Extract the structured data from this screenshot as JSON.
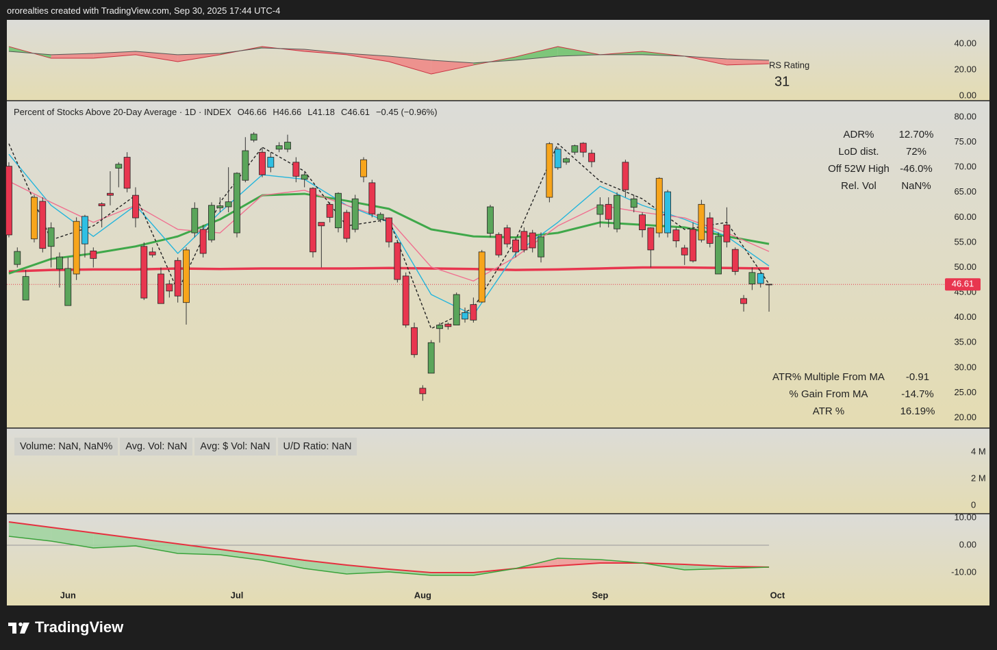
{
  "header": {
    "attribution": "ororealties created with TradingView.com, Sep 30, 2025 17:44 UTC-4"
  },
  "footer": {
    "brand": "TradingView"
  },
  "chart_data": [
    {
      "type": "area",
      "label": "RS Rating",
      "rating": "31",
      "x": [
        0,
        5,
        10,
        15,
        20,
        25,
        30,
        35,
        40,
        45,
        50,
        55,
        60,
        65,
        70,
        75,
        80,
        85,
        90
      ],
      "series": [
        {
          "color": "#c9303f",
          "values": [
            37.9,
            28.9,
            28.9,
            31.6,
            26.3,
            31.6,
            37.9,
            34.2,
            31.6,
            26.3,
            16.8,
            23.7,
            30,
            37.9,
            31.6,
            34.2,
            30.5,
            23.7,
            24.7
          ]
        },
        {
          "color": "#555555",
          "values": [
            34.2,
            31.6,
            32.6,
            34.2,
            31.6,
            32.6,
            36.8,
            35.8,
            32.6,
            30.5,
            27.4,
            25.3,
            27.4,
            30.5,
            31.6,
            31.6,
            30.5,
            28.4,
            27.4
          ]
        }
      ],
      "fill_above": "#6cc26c",
      "fill_below": "#ef8585",
      "ylim": [
        -3.7,
        58.4
      ],
      "yticks": [
        {
          "value": 40,
          "label": "40.00"
        },
        {
          "value": 20,
          "label": "20.00"
        },
        {
          "value": 0,
          "label": "0.00"
        }
      ]
    },
    {
      "type": "candlestick",
      "title": "Percent of Stocks Above 20-Day Average · 1D · INDEX",
      "legend_values": [
        "O46.66",
        "H46.66",
        "L41.18",
        "C46.61",
        "−0.45 (−0.96%)"
      ],
      "open": [
        70.2,
        50.6,
        43.5,
        55.7,
        63.2,
        54.2,
        49.7,
        42.4,
        48.7,
        54.7,
        53.3,
        62.7,
        64.8,
        69.8,
        72,
        64.4,
        54.2,
        53.1,
        48.7,
        46.7,
        51.4,
        43,
        56.9,
        57.6,
        55.5,
        61.9,
        62.1,
        56.9,
        67.4,
        75.4,
        73,
        70,
        73.6,
        73.6,
        71,
        67.6,
        65.8,
        59,
        62.6,
        57.9,
        61,
        57.6,
        68.1,
        66.9,
        59.6,
        59.9,
        54.9,
        48.3,
        38,
        25.9,
        28.9,
        37.8,
        38.7,
        38.5,
        39.7,
        42.6,
        43.1,
        56.8,
        56.6,
        57.9,
        55.5,
        57.2,
        56.9,
        52.1,
        64,
        69.9,
        71,
        73,
        74.8,
        72.8,
        60.6,
        62.6,
        57.7,
        71,
        62,
        60.5,
        57.9,
        56.9,
        56.9,
        57.5,
        53.9,
        57.6,
        55.5,
        59.9,
        48.7,
        58.5,
        53.6,
        43.8,
        46.7,
        46.8,
        46.66
      ],
      "high": [
        71,
        54,
        49.5,
        64.5,
        64,
        59,
        53,
        52,
        60,
        60.5,
        54,
        63,
        69.2,
        71,
        73,
        66,
        55,
        54,
        50,
        47.5,
        52,
        54,
        63,
        58.5,
        63,
        64,
        70,
        69,
        76,
        77,
        74,
        73,
        75,
        76.5,
        72,
        69,
        66,
        59,
        63,
        65,
        61.5,
        64.5,
        72,
        67.5,
        61,
        60,
        55.5,
        49,
        39,
        26.5,
        35.5,
        39,
        39,
        45,
        42,
        44,
        53.5,
        62.5,
        57,
        58.5,
        56,
        58,
        57.5,
        57,
        75,
        74,
        72,
        74.5,
        75,
        73.5,
        64,
        64,
        65,
        71.5,
        64.5,
        61,
        58,
        68,
        65.5,
        58,
        54.5,
        59,
        63.5,
        61,
        57,
        62,
        54,
        44.5,
        50,
        49.5,
        46.66
      ],
      "low": [
        56,
        50,
        43.5,
        55,
        53,
        50,
        46,
        42.4,
        47.5,
        52,
        50,
        58,
        62.4,
        66,
        65,
        58,
        43.5,
        52,
        42.8,
        44,
        43,
        38.6,
        56,
        52,
        55,
        61,
        61,
        56,
        67,
        75,
        68,
        69,
        73,
        73,
        67,
        66,
        52,
        50,
        59,
        57,
        55,
        57,
        67,
        60,
        59,
        54,
        47,
        38,
        32,
        23.4,
        28.9,
        35,
        37.6,
        38.5,
        39,
        39,
        43,
        56,
        52,
        54,
        52,
        53,
        53,
        51,
        63,
        69.5,
        70.5,
        72.5,
        72,
        70,
        58,
        58,
        57,
        64,
        61,
        56,
        50,
        56,
        56,
        54,
        50.5,
        51,
        55,
        54,
        48.7,
        54,
        48.5,
        41.2,
        45.5,
        46,
        41.18
      ],
      "close": [
        56.5,
        53.2,
        48.2,
        64,
        53.8,
        57.9,
        52.1,
        49.8,
        59.2,
        60.2,
        51.8,
        62.3,
        64.4,
        70.6,
        65.8,
        59.9,
        43.9,
        52.5,
        42.8,
        45.3,
        44.3,
        53.5,
        61.8,
        52.8,
        62.4,
        62.3,
        63.1,
        68.8,
        73.3,
        76.6,
        68.5,
        72,
        74.3,
        75,
        68.2,
        68.5,
        53.1,
        58.3,
        60,
        64.8,
        55.8,
        63.7,
        71.5,
        60.7,
        60.6,
        55.1,
        47.6,
        38.5,
        32.6,
        24.8,
        35,
        38.5,
        38.2,
        44.6,
        41,
        39.5,
        53.1,
        62.1,
        52.5,
        54.7,
        53.1,
        53.5,
        53.9,
        56.1,
        74.7,
        73.6,
        71.7,
        74.3,
        73,
        71.1,
        62.5,
        59.6,
        64.4,
        65.5,
        63.7,
        57.5,
        53.5,
        67.8,
        65.1,
        55.3,
        52.5,
        51.3,
        62.6,
        54.8,
        56.2,
        55.1,
        49.2,
        42.8,
        49,
        48.8,
        46.61
      ],
      "colors": [
        "#e8364f",
        "#5aa55a",
        "#5aa55a",
        "#f7a51c",
        "#e8364f",
        "#5aa55a",
        "#5aa55a",
        "#5aa55a",
        "#f7a51c",
        "#2fbfe3",
        "#e8364f",
        "#e8364f",
        "#e8364f",
        "#5aa55a",
        "#e8364f",
        "#e8364f",
        "#e8364f",
        "#e8364f",
        "#e8364f",
        "#e8364f",
        "#e8364f",
        "#f7a51c",
        "#5aa55a",
        "#e8364f",
        "#5aa55a",
        "#5aa55a",
        "#5aa55a",
        "#5aa55a",
        "#5aa55a",
        "#5aa55a",
        "#e8364f",
        "#2fbfe3",
        "#5aa55a",
        "#5aa55a",
        "#e8364f",
        "#5aa55a",
        "#e8364f",
        "#e8364f",
        "#e8364f",
        "#5aa55a",
        "#e8364f",
        "#5aa55a",
        "#f7a51c",
        "#e8364f",
        "#5aa55a",
        "#e8364f",
        "#e8364f",
        "#e8364f",
        "#e8364f",
        "#e8364f",
        "#5aa55a",
        "#5aa55a",
        "#e8364f",
        "#5aa55a",
        "#2fbfe3",
        "#e8364f",
        "#f7a51c",
        "#5aa55a",
        "#e8364f",
        "#e8364f",
        "#e8364f",
        "#e8364f",
        "#e8364f",
        "#5aa55a",
        "#f7a51c",
        "#2fbfe3",
        "#5aa55a",
        "#5aa55a",
        "#e8364f",
        "#e8364f",
        "#5aa55a",
        "#e8364f",
        "#5aa55a",
        "#e8364f",
        "#5aa55a",
        "#e8364f",
        "#e8364f",
        "#f7a51c",
        "#2fbfe3",
        "#e8364f",
        "#e8364f",
        "#e8364f",
        "#f7a51c",
        "#e8364f",
        "#5aa55a",
        "#e8364f",
        "#e8364f",
        "#e8364f",
        "#5aa55a",
        "#2fbfe3",
        "#e8364f"
      ],
      "xlim": [
        -0.24,
        116.1
      ],
      "xticks": [
        {
          "value": 7,
          "label": "Jun"
        },
        {
          "value": 27,
          "label": "Jul"
        },
        {
          "value": 49,
          "label": "Aug"
        },
        {
          "value": 70,
          "label": "Sep"
        },
        {
          "value": 91,
          "label": "Oct"
        }
      ],
      "ylim": [
        17.95,
        83.28
      ],
      "yticks": [
        {
          "value": 80,
          "label": "80.00"
        },
        {
          "value": 75,
          "label": "75.00"
        },
        {
          "value": 70,
          "label": "70.00"
        },
        {
          "value": 65,
          "label": "65.00"
        },
        {
          "value": 60,
          "label": "60.00"
        },
        {
          "value": 55,
          "label": "55.00"
        },
        {
          "value": 50,
          "label": "50.00"
        },
        {
          "value": 45,
          "label": "45.00"
        },
        {
          "value": 40,
          "label": "40.00"
        },
        {
          "value": 35,
          "label": "35.00"
        },
        {
          "value": 30,
          "label": "30.00"
        },
        {
          "value": 25,
          "label": "25.00"
        },
        {
          "value": 20,
          "label": "20.00"
        }
      ],
      "ma_x": [
        0,
        5,
        10,
        15,
        20,
        25,
        30,
        35,
        40,
        45,
        50,
        55,
        60,
        65,
        70,
        75,
        80,
        85,
        90
      ],
      "moving_averages": [
        {
          "color": "#e8364f",
          "values": [
            49.2,
            49.5,
            49.6,
            49.6,
            49.8,
            49.7,
            49.8,
            49.8,
            49.8,
            49.9,
            49.8,
            49.7,
            49.5,
            49.6,
            49.8,
            50.0,
            50.0,
            49.9,
            49.8
          ]
        },
        {
          "color": "#3fa84a",
          "values": [
            48.8,
            51.7,
            52.8,
            54.2,
            56.2,
            59.6,
            64.4,
            64.7,
            63.3,
            61.7,
            57.6,
            56.2,
            56,
            56.9,
            59,
            58.5,
            58,
            56.2,
            54.7
          ]
        },
        {
          "color": "#23b5dc",
          "values": [
            72.6,
            62.4,
            56.2,
            62.4,
            52.8,
            61,
            68.5,
            67.6,
            62.4,
            59,
            44.6,
            40.5,
            52.8,
            59,
            66.2,
            62.4,
            59.6,
            56.2,
            50.3
          ]
        },
        {
          "color": "#f07090",
          "values": [
            67.2,
            63,
            59,
            62.4,
            57.6,
            56.9,
            64.4,
            65.4,
            62.4,
            59.6,
            50.1,
            47.3,
            52.1,
            58.3,
            62.4,
            61,
            59.9,
            56.9,
            53.2
          ]
        },
        {
          "color": "#222222",
          "dashed": true,
          "values": [
            74.7,
            55.5,
            58.3,
            64.4,
            45.3,
            63,
            74,
            69.2,
            58.3,
            59.6,
            37.8,
            41.9,
            55.5,
            74.7,
            67.2,
            63.7,
            57.6,
            59,
            46.7
          ]
        }
      ],
      "price_line": {
        "value": 46.61,
        "label": "46.61",
        "color": "#e8364f"
      },
      "stats_top": [
        [
          "ADR%",
          "12.70%"
        ],
        [
          "LoD dist.",
          "72%"
        ],
        [
          "Off 52W High",
          "-46.0%"
        ],
        [
          "Rel. Vol",
          "NaN%"
        ]
      ],
      "stats_bottom": [
        [
          "ATR% Multiple From MA",
          "-0.91"
        ],
        [
          "% Gain From MA",
          "-14.7%"
        ],
        [
          "ATR %",
          "16.19%"
        ]
      ]
    },
    {
      "type": "bar",
      "info": [
        "Volume: NaN, NaN%",
        "Avg. Vol: NaN",
        "Avg: $ Vol: NaN",
        "U/D Ratio: NaN"
      ],
      "ylim": [
        -600000,
        5790000
      ],
      "yticks": [
        {
          "value": 4000000,
          "label": "4 M"
        },
        {
          "value": 2000000,
          "label": "2 M"
        },
        0
      ]
    },
    {
      "type": "line",
      "x": [
        0,
        5,
        10,
        15,
        20,
        25,
        30,
        35,
        40,
        45,
        50,
        55,
        60,
        65,
        70,
        75,
        80,
        85,
        90
      ],
      "series": [
        {
          "color": "#e5303f",
          "values": [
            8.5,
            6.5,
            4.5,
            2.5,
            0.5,
            -1.5,
            -3.5,
            -5.5,
            -7.25,
            -8.75,
            -10,
            -10,
            -8.5,
            -7.5,
            -6.5,
            -6.5,
            -7,
            -7.75,
            -8
          ]
        },
        {
          "color": "#3aa23a",
          "values": [
            3.25,
            1.5,
            -1,
            -0.25,
            -3,
            -3.5,
            -5.5,
            -8.5,
            -10.5,
            -9.75,
            -11,
            -11,
            -8.5,
            -4.75,
            -5.25,
            -6.5,
            -9,
            -8.5,
            -8
          ]
        }
      ],
      "fill_above": "#9fd49f",
      "fill_below": "#f09a9a",
      "ylim": [
        -14.75,
        11.5
      ],
      "yticks": [
        {
          "value": 10,
          "label": "10.00"
        },
        {
          "value": 0,
          "label": "0.00"
        },
        {
          "value": -10,
          "label": "-10.00"
        }
      ]
    }
  ]
}
